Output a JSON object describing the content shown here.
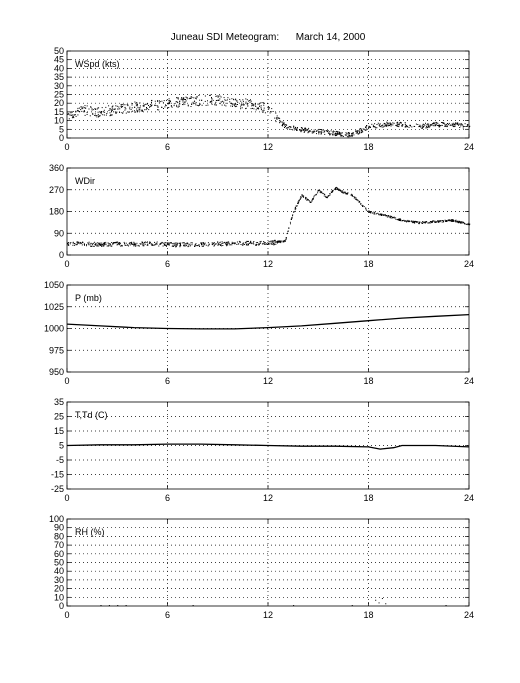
{
  "title": "Juneau SDI Meteogram:      March 14, 2000",
  "chart_data": [
    {
      "type": "scatter",
      "label": "WSpd (kts)",
      "xlim": [
        0,
        24
      ],
      "ylim": [
        0,
        50
      ],
      "xticks": [
        0,
        6,
        12,
        18,
        24
      ],
      "yticks": [
        0,
        5,
        10,
        15,
        20,
        25,
        30,
        35,
        40,
        45,
        50
      ],
      "grid": true,
      "series": [
        {
          "x": [
            0,
            1,
            2,
            3,
            4,
            5,
            6,
            7,
            8,
            9,
            10,
            11,
            12,
            12.5,
            13,
            14,
            15,
            16,
            17,
            18,
            19,
            20,
            21,
            22,
            23,
            24
          ],
          "values": [
            14,
            16,
            15,
            17,
            18,
            19,
            20,
            21,
            22,
            22,
            20,
            20,
            17,
            12,
            7,
            5,
            4,
            3,
            2,
            7,
            8,
            8,
            7,
            8,
            8,
            7
          ]
        }
      ]
    },
    {
      "type": "scatter",
      "label": "WDir",
      "xlim": [
        0,
        24
      ],
      "ylim": [
        0,
        360
      ],
      "xticks": [
        0,
        6,
        12,
        18,
        24
      ],
      "yticks": [
        0,
        90,
        180,
        270,
        360
      ],
      "grid": true,
      "series": [
        {
          "x": [
            0,
            1,
            2,
            3,
            4,
            5,
            6,
            7,
            8,
            9,
            10,
            11,
            12,
            13,
            13.5,
            14,
            14.5,
            15,
            15.5,
            16,
            16.5,
            17,
            18,
            19,
            20,
            21,
            22,
            23,
            24
          ],
          "values": [
            50,
            48,
            45,
            47,
            46,
            48,
            45,
            44,
            46,
            48,
            50,
            50,
            50,
            60,
            180,
            250,
            220,
            270,
            240,
            280,
            260,
            250,
            180,
            165,
            145,
            135,
            140,
            145,
            130
          ]
        }
      ]
    },
    {
      "type": "line",
      "label": "P (mb)",
      "xlim": [
        0,
        24
      ],
      "ylim": [
        950,
        1050
      ],
      "xticks": [
        0,
        6,
        12,
        18,
        24
      ],
      "yticks": [
        950,
        975,
        1000,
        1025,
        1050
      ],
      "grid": true,
      "series": [
        {
          "x": [
            0,
            2,
            4,
            6,
            8,
            10,
            12,
            14,
            16,
            18,
            20,
            22,
            24
          ],
          "values": [
            1005,
            1003,
            1001,
            1000,
            999.5,
            999.5,
            1001,
            1003,
            1006,
            1009,
            1012,
            1014,
            1016
          ]
        }
      ]
    },
    {
      "type": "line",
      "label": "T,Td (C)",
      "xlim": [
        0,
        24
      ],
      "ylim": [
        -25,
        35
      ],
      "xticks": [
        0,
        6,
        12,
        18,
        24
      ],
      "yticks": [
        -25,
        -15,
        -5,
        5,
        15,
        25,
        35
      ],
      "grid": true,
      "series": [
        {
          "x": [
            0,
            2,
            4,
            6,
            8,
            10,
            12,
            14,
            16,
            18,
            18.7,
            19.5,
            20,
            22,
            24
          ],
          "values": [
            5,
            5.5,
            5.5,
            6,
            6,
            5.5,
            5,
            4.5,
            4.5,
            4,
            2.5,
            3.5,
            5,
            5,
            4
          ]
        }
      ]
    },
    {
      "type": "scatter",
      "label": "RH (%)",
      "xlim": [
        0,
        24
      ],
      "ylim": [
        0,
        100
      ],
      "xticks": [
        0,
        6,
        12,
        18,
        24
      ],
      "yticks": [
        0,
        10,
        20,
        30,
        40,
        50,
        60,
        70,
        80,
        90,
        100
      ],
      "grid": true,
      "series": [
        {
          "x": [
            2,
            2.5,
            3,
            3.5,
            7.5,
            13.5,
            17,
            18.4,
            18.6,
            18.8,
            19,
            22.6
          ],
          "values": [
            0,
            0,
            0,
            0,
            0,
            0,
            0,
            6,
            3,
            8,
            2,
            0
          ]
        }
      ]
    }
  ]
}
